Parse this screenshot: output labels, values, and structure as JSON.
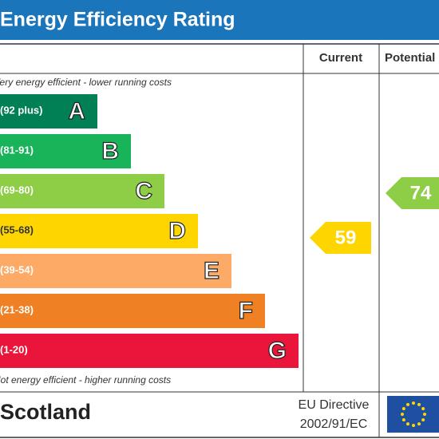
{
  "header": {
    "title": "Energy Efficiency Rating"
  },
  "columns": [
    "Current",
    "Potential"
  ],
  "top_note": "Very energy efficient - lower running costs",
  "bottom_note": "Not energy efficient - higher running costs",
  "bands": [
    {
      "range": "(92 plus)",
      "letter": "A"
    },
    {
      "range": "(81-91)",
      "letter": "B"
    },
    {
      "range": "(69-80)",
      "letter": "C"
    },
    {
      "range": "(55-68)",
      "letter": "D"
    },
    {
      "range": "(39-54)",
      "letter": "E"
    },
    {
      "range": "(21-38)",
      "letter": "F"
    },
    {
      "range": "(1-20)",
      "letter": "G"
    }
  ],
  "current": 59,
  "potential": 74,
  "footer": {
    "region": "Scotland",
    "directive": [
      "EU Directive",
      "2002/91/EC"
    ]
  }
}
